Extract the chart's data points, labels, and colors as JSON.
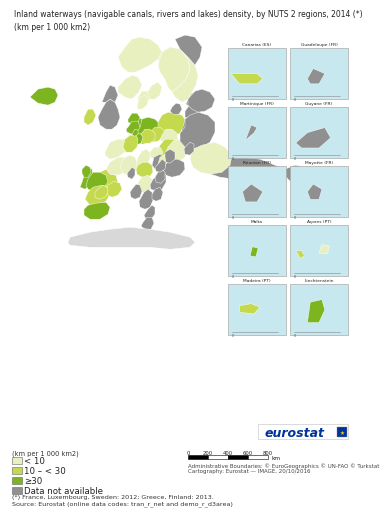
{
  "title_line1": "Inland waterways (navigable canals, rivers and lakes) density, by NUTS 2 regions, 2014 (*)",
  "title_line2": "(km per 1 000 km2)",
  "legend_items": [
    {
      "label": "< 10",
      "color": "#e8f0c0"
    },
    {
      "label": "10 – < 30",
      "color": "#c5d94e"
    },
    {
      "label": "≥30",
      "color": "#7cb520"
    },
    {
      "label": "Data not available",
      "color": "#909090"
    }
  ],
  "footnote_line1": "(*) France, Luxembourg, Sweden: 2012; Greece, Finland: 2013.",
  "footnote_line2": "Source: Eurostat (online data codes: tran_r_net and demo_r_d3area)",
  "admin_boundary": "Administrative Boundaries: © EuroGeographics © UN-FAO © Turkstat",
  "cartography": "Cartography: Eurostat — IMAGE, 20/10/2016",
  "scale_ticks": [
    0,
    200,
    400,
    600,
    800
  ],
  "scale_unit": "km",
  "sea_color": "#c8e8f0",
  "land_gray": "#909090",
  "land_light": "#d8d8d8",
  "white": "#ffffff",
  "eurostat_blue": "#003399",
  "title_fontsize": 5.8,
  "legend_fontsize": 6.2,
  "small_fontsize": 4.8,
  "tiny_fontsize": 4.2,
  "inset_labels": [
    "Canarias (ES)",
    "Guadeloupe (FR)",
    "Martinique (FR)",
    "Guyane (FR)",
    "Réunion (FR)",
    "Mayotte (FR)",
    "Malta",
    "Açores (PT)",
    "Madeira (PT)",
    "Liechtenstein"
  ],
  "inset_colors": [
    [
      "#c5d94e",
      "#c5d94e",
      "#c5d94e"
    ],
    [
      "#909090"
    ],
    [
      "#909090"
    ],
    [
      "#909090"
    ],
    [
      "#909090"
    ],
    [
      "#909090"
    ],
    [
      "#7cb520"
    ],
    [
      "#c5d94e",
      "#e8f0c0"
    ],
    [
      "#c5d94e"
    ],
    [
      "#7cb520",
      "#c5d94e"
    ]
  ]
}
